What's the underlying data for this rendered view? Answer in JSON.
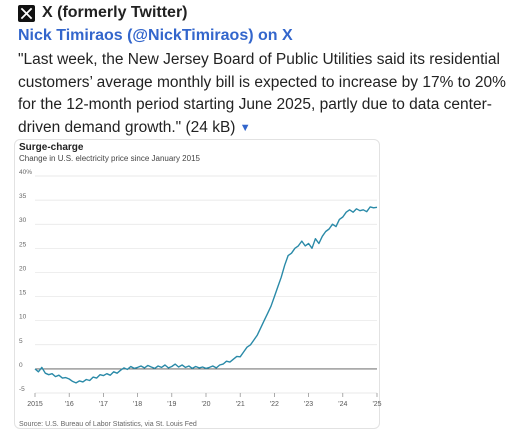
{
  "header": {
    "site_name": "X (formerly Twitter)",
    "logo_icon": "x-logo-icon"
  },
  "post": {
    "link_text": "Nick Timiraos (@NickTimiraos) on X",
    "quote": "\"Last week, the New Jersey Board of Public Utilities said its residential customers’ average monthly bill is expected to increase by 17% to 20% for the 12-month period starting June 2025, partly due to data center-driven demand growth.\"",
    "size": "(24 kB)",
    "caret_icon": "caret-down-icon"
  },
  "chart_data": {
    "type": "line",
    "title": "Surge-charge",
    "subtitle": "Change in U.S. electricity price since January 2015",
    "source": "Source: U.S. Bureau of Labor Statistics, via St. Louis Fed",
    "ylim": [
      -5,
      40
    ],
    "yticks": [
      "40%",
      "35",
      "30",
      "25",
      "20",
      "15",
      "10",
      "5",
      "0",
      "-5"
    ],
    "ytick_values": [
      40,
      35,
      30,
      25,
      20,
      15,
      10,
      5,
      0,
      -5
    ],
    "xlim": [
      2015,
      2025
    ],
    "xticks": [
      "2015",
      "'16",
      "'17",
      "'18",
      "'19",
      "'20",
      "'21",
      "'22",
      "'23",
      "'24",
      "'25"
    ],
    "xtick_values": [
      2015,
      2016,
      2017,
      2018,
      2019,
      2020,
      2021,
      2022,
      2023,
      2024,
      2025
    ],
    "grid": true,
    "line_color": "#2a8aa8",
    "series": [
      {
        "x": [
          2015.0,
          2015.1,
          2015.2,
          2015.3,
          2015.4,
          2015.5,
          2015.6,
          2015.7,
          2015.8,
          2015.9,
          2016.0,
          2016.1,
          2016.2,
          2016.3,
          2016.4,
          2016.5,
          2016.6,
          2016.7,
          2016.8,
          2016.9,
          2017.0,
          2017.1,
          2017.2,
          2017.3,
          2017.4,
          2017.5,
          2017.6,
          2017.7,
          2017.8,
          2017.9,
          2018.0,
          2018.1,
          2018.2,
          2018.3,
          2018.4,
          2018.5,
          2018.6,
          2018.7,
          2018.8,
          2018.9,
          2019.0,
          2019.1,
          2019.2,
          2019.3,
          2019.4,
          2019.5,
          2019.6,
          2019.7,
          2019.8,
          2019.9,
          2020.0,
          2020.1,
          2020.2,
          2020.3,
          2020.4,
          2020.5,
          2020.6,
          2020.7,
          2020.8,
          2020.9,
          2021.0,
          2021.1,
          2021.2,
          2021.3,
          2021.4,
          2021.5,
          2021.6,
          2021.7,
          2021.8,
          2021.9,
          2022.0,
          2022.1,
          2022.2,
          2022.3,
          2022.4,
          2022.5,
          2022.6,
          2022.7,
          2022.8,
          2022.9,
          2023.0,
          2023.1,
          2023.2,
          2023.3,
          2023.4,
          2023.5,
          2023.6,
          2023.7,
          2023.8,
          2023.9,
          2024.0,
          2024.1,
          2024.2,
          2024.3,
          2024.4,
          2024.5,
          2024.6,
          2024.7,
          2024.8,
          2024.9,
          2025.0
        ],
        "values": [
          0.0,
          -0.6,
          0.3,
          -0.9,
          -1.2,
          -1.0,
          -1.6,
          -1.3,
          -1.9,
          -1.8,
          -2.1,
          -2.6,
          -2.9,
          -2.5,
          -2.7,
          -2.2,
          -2.4,
          -1.7,
          -1.9,
          -1.2,
          -1.4,
          -1.0,
          -1.3,
          -0.6,
          -0.9,
          -0.3,
          0.2,
          -0.1,
          0.5,
          0.1,
          0.3,
          0.6,
          0.2,
          0.7,
          0.4,
          0.1,
          0.6,
          0.3,
          0.8,
          0.2,
          0.5,
          1.0,
          0.4,
          0.8,
          0.3,
          0.6,
          0.1,
          0.5,
          0.2,
          0.4,
          0.1,
          0.3,
          0.6,
          0.2,
          0.8,
          1.0,
          1.6,
          1.4,
          2.0,
          2.6,
          2.5,
          3.5,
          4.5,
          5.0,
          6.0,
          7.0,
          8.5,
          10.0,
          11.5,
          13.0,
          15.0,
          17.0,
          19.0,
          21.5,
          23.5,
          24.0,
          25.0,
          25.5,
          26.5,
          25.5,
          26.0,
          25.0,
          27.0,
          26.0,
          27.5,
          28.5,
          29.0,
          30.0,
          29.5,
          31.0,
          31.5,
          32.5,
          33.0,
          32.5,
          33.2,
          32.8,
          33.0,
          32.6,
          33.6,
          33.4,
          33.5
        ]
      }
    ]
  }
}
